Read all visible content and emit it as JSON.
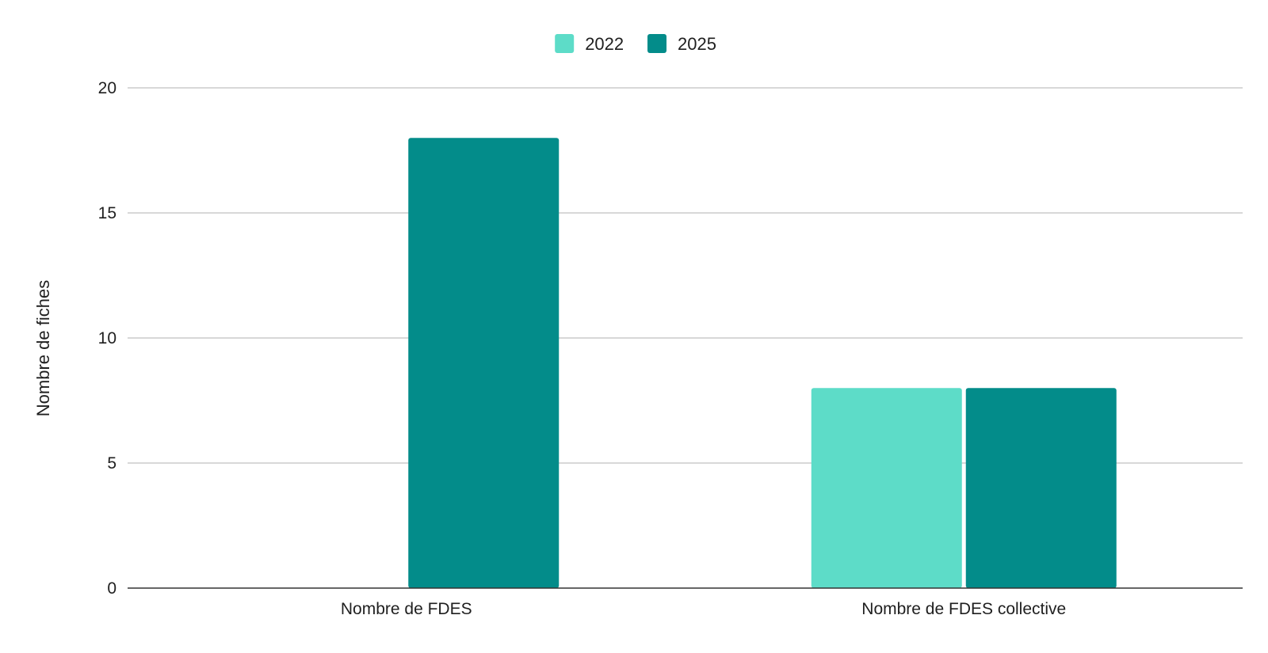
{
  "chart_data": {
    "type": "bar",
    "title": "",
    "xlabel": "",
    "ylabel": "Nombre de fiches",
    "categories": [
      "Nombre de FDES",
      "Nombre de FDES collective"
    ],
    "series": [
      {
        "name": "2022",
        "values": [
          0,
          8
        ],
        "color": "#5ddcc8"
      },
      {
        "name": "2025",
        "values": [
          18,
          8
        ],
        "color": "#038c8a"
      }
    ],
    "ylim": [
      0,
      20
    ],
    "yticks": [
      0,
      5,
      10,
      15,
      20
    ],
    "grid": true,
    "legend_position": "top-center",
    "gridline_color": "#cccccc",
    "baseline_color": "#333333"
  }
}
